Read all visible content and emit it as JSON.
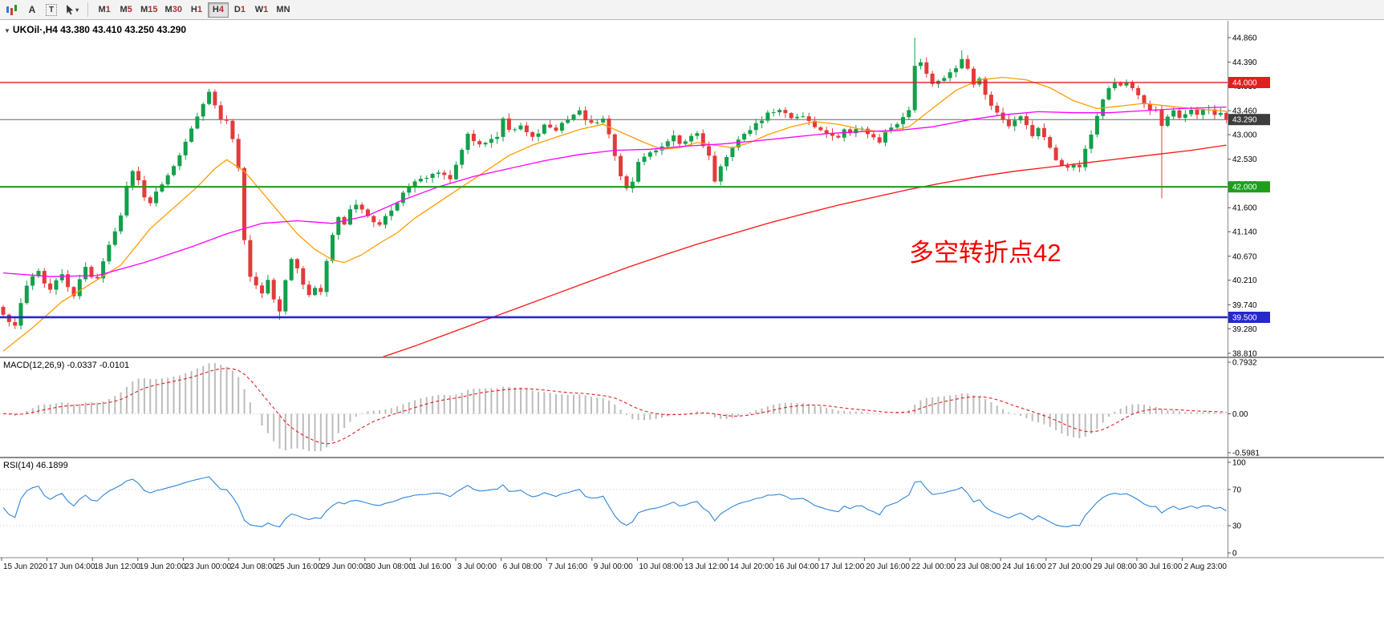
{
  "toolbar": {
    "tools": {
      "a_label": "A",
      "t_label": "T"
    },
    "timeframes": [
      {
        "label": "M1",
        "active": false
      },
      {
        "label": "M5",
        "active": false
      },
      {
        "label": "M15",
        "active": false
      },
      {
        "label": "M30",
        "active": false
      },
      {
        "label": "H1",
        "active": false
      },
      {
        "label": "H4",
        "active": true
      },
      {
        "label": "D1",
        "active": false
      },
      {
        "label": "W1",
        "active": false
      },
      {
        "label": "MN",
        "active": false
      }
    ]
  },
  "chart": {
    "symbol_ohlc": "UKOil·,H4  43.380 43.410 43.250 43.290",
    "annotation": {
      "text": "多空转折点42",
      "color": "#f20000"
    },
    "levels": [
      {
        "price": 44.0,
        "color": "#e01f1f",
        "width": 1.4,
        "badge": "44.000"
      },
      {
        "price": 42.0,
        "color": "#1d9e1d",
        "width": 2.2,
        "badge": "42.000"
      },
      {
        "price": 39.5,
        "color": "#2727cc",
        "width": 2.6,
        "badge": "39.500"
      }
    ],
    "current_price": {
      "value": 43.29,
      "badge": "43.290",
      "line_color": "#666666",
      "badge_bg": "#3c3c3c"
    },
    "price_axis_ticks": [
      "44.860",
      "44.390",
      "43.930",
      "43.460",
      "43.000",
      "42.530",
      "42.060",
      "41.600",
      "41.140",
      "40.670",
      "40.210",
      "39.740",
      "39.280",
      "38.810"
    ]
  },
  "macd": {
    "label": "MACD(12,26,9) -0.0337 -0.0101",
    "fast": 12,
    "slow": 26,
    "signal": 9,
    "scale": [
      {
        "text": "0.7932",
        "value": 0.7932
      },
      {
        "text": "0.00",
        "value": 0
      },
      {
        "text": "-0.5981",
        "value": -0.5981
      }
    ],
    "hist_color": "#bcbcbc",
    "signal_color": "#e02020"
  },
  "rsi": {
    "label": "RSI(14) 46.1899",
    "period": 14,
    "scale": [
      {
        "text": "100",
        "value": 100
      },
      {
        "text": "70",
        "value": 70
      },
      {
        "text": "30",
        "value": 30
      },
      {
        "text": "0",
        "value": 0
      }
    ],
    "levels": [
      70,
      30
    ],
    "line_color": "#2e86d9"
  },
  "chart_data": {
    "type": "candlestick",
    "symbol": "UKOil",
    "timeframe": "H4",
    "title": "UKOil·,H4",
    "ohlc_display": {
      "open": 43.38,
      "high": 43.41,
      "low": 43.25,
      "close": 43.29
    },
    "y_range": [
      38.747,
      45.167
    ],
    "first_open": 39.7,
    "up_color": "#12a04b",
    "down_color": "#e43a3a",
    "closes": [
      39.55,
      39.4,
      39.32,
      39.8,
      40.1,
      40.3,
      40.38,
      40.15,
      40.05,
      40.2,
      40.32,
      40.1,
      39.9,
      40.2,
      40.48,
      40.3,
      40.22,
      40.6,
      40.9,
      41.15,
      41.45,
      42.0,
      42.3,
      42.1,
      41.78,
      41.7,
      41.88,
      42.05,
      42.2,
      42.42,
      42.6,
      42.85,
      43.1,
      43.35,
      43.6,
      43.82,
      43.55,
      43.3,
      43.28,
      42.9,
      42.35,
      40.95,
      40.3,
      40.1,
      39.95,
      40.2,
      39.85,
      39.62,
      40.2,
      40.6,
      40.45,
      40.15,
      39.95,
      40.05,
      40.0,
      40.6,
      41.1,
      41.45,
      41.3,
      41.55,
      41.65,
      41.55,
      41.45,
      41.35,
      41.3,
      41.42,
      41.55,
      41.72,
      41.9,
      42.0,
      42.1,
      42.15,
      42.2,
      42.22,
      42.25,
      42.2,
      42.15,
      42.4,
      42.7,
      43.0,
      42.9,
      42.82,
      42.85,
      42.9,
      42.95,
      43.3,
      43.1,
      43.12,
      43.15,
      43.05,
      42.95,
      43.05,
      43.2,
      43.15,
      43.1,
      43.2,
      43.3,
      43.38,
      43.45,
      43.3,
      43.2,
      43.25,
      43.3,
      43.0,
      42.6,
      42.2,
      41.95,
      42.1,
      42.45,
      42.55,
      42.65,
      42.7,
      42.75,
      42.9,
      43.0,
      42.8,
      42.9,
      42.95,
      43.0,
      42.8,
      42.6,
      42.1,
      42.4,
      42.6,
      42.75,
      42.9,
      43.0,
      43.1,
      43.2,
      43.3,
      43.4,
      43.45,
      43.5,
      43.4,
      43.3,
      43.32,
      43.35,
      43.25,
      43.15,
      43.1,
      43.05,
      43.0,
      42.95,
      43.1,
      43.05,
      43.08,
      43.1,
      43.0,
      42.95,
      42.85,
      43.05,
      43.12,
      43.2,
      43.35,
      43.45,
      44.3,
      44.4,
      44.15,
      43.95,
      44.05,
      44.1,
      44.2,
      44.3,
      44.45,
      44.25,
      43.95,
      44.1,
      43.75,
      43.55,
      43.4,
      43.3,
      43.15,
      43.3,
      43.35,
      43.2,
      43.0,
      43.1,
      42.95,
      42.75,
      42.5,
      42.4,
      42.35,
      42.45,
      42.4,
      42.7,
      43.0,
      43.35,
      43.7,
      43.9,
      44.0,
      43.95,
      44.0,
      43.9,
      43.75,
      43.6,
      43.45,
      43.5,
      43.15,
      43.35,
      43.45,
      43.3,
      43.4,
      43.45,
      43.35,
      43.45,
      43.5,
      43.4,
      43.42,
      43.29
    ],
    "special_bars": {
      "47": {
        "low": 39.45
      },
      "155": {
        "high": 44.86
      },
      "163": {
        "high": 44.62
      },
      "197": {
        "low": 41.78
      }
    },
    "ma_lines": [
      {
        "name": "ma-fast",
        "color": "#ff9d00",
        "points": [
          [
            0,
            38.85
          ],
          [
            5,
            39.3
          ],
          [
            10,
            39.8
          ],
          [
            15,
            40.15
          ],
          [
            20,
            40.5
          ],
          [
            25,
            41.2
          ],
          [
            30,
            41.7
          ],
          [
            33,
            42.0
          ],
          [
            36,
            42.35
          ],
          [
            38,
            42.52
          ],
          [
            41,
            42.3
          ],
          [
            44,
            41.9
          ],
          [
            47,
            41.5
          ],
          [
            50,
            41.1
          ],
          [
            53,
            40.8
          ],
          [
            56,
            40.6
          ],
          [
            58,
            40.55
          ],
          [
            61,
            40.7
          ],
          [
            64,
            40.92
          ],
          [
            67,
            41.12
          ],
          [
            70,
            41.4
          ],
          [
            74,
            41.7
          ],
          [
            78,
            42.0
          ],
          [
            82,
            42.3
          ],
          [
            86,
            42.6
          ],
          [
            90,
            42.8
          ],
          [
            94,
            42.95
          ],
          [
            98,
            43.1
          ],
          [
            102,
            43.2
          ],
          [
            106,
            43.0
          ],
          [
            109,
            42.85
          ],
          [
            112,
            42.72
          ],
          [
            115,
            42.75
          ],
          [
            118,
            42.85
          ],
          [
            121,
            42.8
          ],
          [
            124,
            42.75
          ],
          [
            127,
            42.85
          ],
          [
            130,
            43.0
          ],
          [
            134,
            43.15
          ],
          [
            138,
            43.25
          ],
          [
            142,
            43.2
          ],
          [
            146,
            43.1
          ],
          [
            150,
            43.05
          ],
          [
            154,
            43.15
          ],
          [
            158,
            43.5
          ],
          [
            162,
            43.85
          ],
          [
            166,
            44.05
          ],
          [
            170,
            44.1
          ],
          [
            174,
            44.05
          ],
          [
            178,
            43.9
          ],
          [
            182,
            43.65
          ],
          [
            186,
            43.5
          ],
          [
            190,
            43.55
          ],
          [
            194,
            43.6
          ],
          [
            198,
            43.55
          ],
          [
            202,
            43.5
          ],
          [
            208,
            43.45
          ]
        ]
      },
      {
        "name": "ma-medium",
        "color": "#ff00ff",
        "points": [
          [
            0,
            40.35
          ],
          [
            8,
            40.28
          ],
          [
            16,
            40.3
          ],
          [
            24,
            40.55
          ],
          [
            32,
            40.85
          ],
          [
            38,
            41.1
          ],
          [
            44,
            41.3
          ],
          [
            50,
            41.35
          ],
          [
            56,
            41.3
          ],
          [
            62,
            41.45
          ],
          [
            68,
            41.75
          ],
          [
            74,
            42.0
          ],
          [
            80,
            42.2
          ],
          [
            86,
            42.35
          ],
          [
            92,
            42.5
          ],
          [
            98,
            42.62
          ],
          [
            104,
            42.7
          ],
          [
            110,
            42.72
          ],
          [
            116,
            42.78
          ],
          [
            122,
            42.82
          ],
          [
            128,
            42.88
          ],
          [
            134,
            42.95
          ],
          [
            140,
            43.02
          ],
          [
            146,
            43.06
          ],
          [
            152,
            43.08
          ],
          [
            158,
            43.15
          ],
          [
            164,
            43.28
          ],
          [
            170,
            43.38
          ],
          [
            176,
            43.44
          ],
          [
            182,
            43.42
          ],
          [
            188,
            43.42
          ],
          [
            194,
            43.46
          ],
          [
            200,
            43.5
          ],
          [
            208,
            43.53
          ]
        ]
      },
      {
        "name": "ma-slow",
        "color": "#ff1111",
        "points": [
          [
            64,
            38.72
          ],
          [
            70,
            38.95
          ],
          [
            76,
            39.2
          ],
          [
            82,
            39.45
          ],
          [
            88,
            39.7
          ],
          [
            94,
            39.95
          ],
          [
            100,
            40.2
          ],
          [
            106,
            40.45
          ],
          [
            112,
            40.68
          ],
          [
            118,
            40.9
          ],
          [
            124,
            41.1
          ],
          [
            130,
            41.3
          ],
          [
            136,
            41.48
          ],
          [
            142,
            41.65
          ],
          [
            148,
            41.8
          ],
          [
            154,
            41.95
          ],
          [
            160,
            42.08
          ],
          [
            166,
            42.2
          ],
          [
            172,
            42.3
          ],
          [
            178,
            42.38
          ],
          [
            184,
            42.46
          ],
          [
            190,
            42.54
          ],
          [
            196,
            42.62
          ],
          [
            202,
            42.7
          ],
          [
            208,
            42.8
          ]
        ]
      }
    ],
    "x_labels": [
      "15 Jun 2020",
      "17 Jun 04:00",
      "18 Jun 12:00",
      "19 Jun 20:00",
      "23 Jun 00:00",
      "24 Jun 08:00",
      "25 Jun 16:00",
      "29 Jun 00:00",
      "30 Jun 08:00",
      "1 Jul 16:00",
      "3 Jul 00:00",
      "6 Jul 08:00",
      "7 Jul 16:00",
      "9 Jul 00:00",
      "10 Jul 08:00",
      "13 Jul 12:00",
      "14 Jul 20:00",
      "16 Jul 04:00",
      "17 Jul 12:00",
      "20 Jul 16:00",
      "22 Jul 00:00",
      "23 Jul 08:00",
      "24 Jul 16:00",
      "27 Jul 20:00",
      "29 Jul 08:00",
      "30 Jul 16:00",
      "2 Aug 23:00"
    ]
  }
}
